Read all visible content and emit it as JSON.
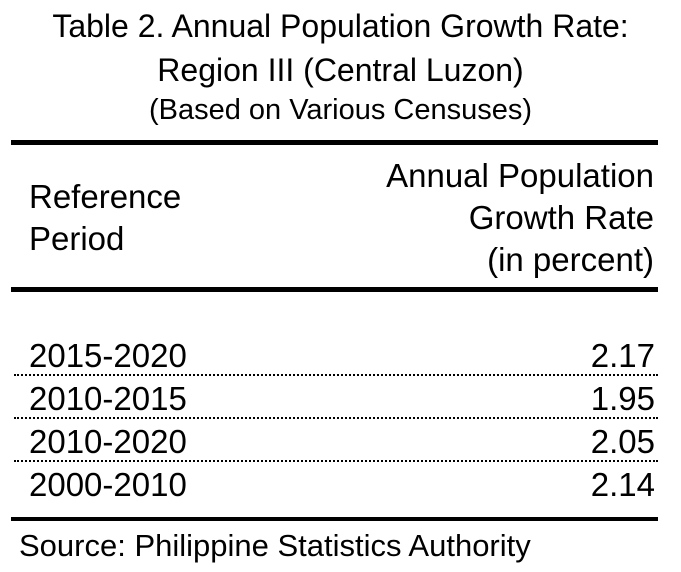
{
  "title": {
    "line1": "Table 2. Annual Population Growth Rate:",
    "line2": "Region III (Central Luzon)",
    "line3": "(Based on Various Censuses)"
  },
  "header": {
    "left": [
      "Reference",
      "Period"
    ],
    "right": [
      "Annual Population",
      "Growth Rate",
      "(in percent)"
    ]
  },
  "rows": [
    {
      "period": "2015-2020",
      "rate": "2.17"
    },
    {
      "period": "2010-2015",
      "rate": "1.95"
    },
    {
      "period": "2010-2020",
      "rate": "2.05"
    },
    {
      "period": "2000-2010",
      "rate": "2.14"
    }
  ],
  "source": "Source: Philippine Statistics Authority"
}
